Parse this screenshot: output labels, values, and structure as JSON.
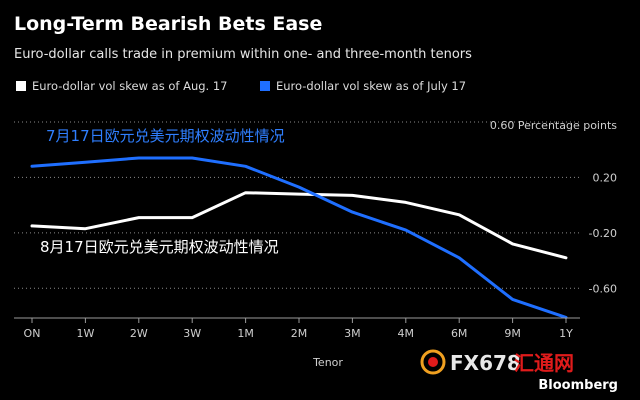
{
  "header": {
    "title": "Long-Term Bearish Bets Ease",
    "subtitle": "Euro-dollar calls trade in premium within one- and three-month tenors"
  },
  "annotations": {
    "july": "7月17日欧元兑美元期权波动性情况",
    "aug": "8月17日欧元兑美元期权波动性情况"
  },
  "watermark": {
    "part1": "FX678",
    "part2": "汇通网"
  },
  "source": "Bloomberg",
  "colors": {
    "background": "#000000",
    "aug": "#ffffff",
    "july": "#1f6fff"
  },
  "chart_data": {
    "type": "line",
    "title": "Long-Term Bearish Bets Ease",
    "subtitle": "Euro-dollar calls trade in premium within one- and three-month tenors",
    "xlabel": "Tenor",
    "ylabel": "Percentage points",
    "y_unit_label": "0.60 Percentage points",
    "ylim": [
      -0.8,
      0.6
    ],
    "grid": true,
    "legend_position": "top-left",
    "categories": [
      "ON",
      "1W",
      "2W",
      "3W",
      "1M",
      "2M",
      "3M",
      "4M",
      "6M",
      "9M",
      "1Y"
    ],
    "yticks": [
      {
        "value": 0.6,
        "label": "0.60"
      },
      {
        "value": 0.2,
        "label": "0.20"
      },
      {
        "value": -0.2,
        "label": "-0.20"
      },
      {
        "value": -0.6,
        "label": "-0.60"
      }
    ],
    "series": [
      {
        "name": "Euro-dollar vol skew as of Aug. 17",
        "color": "#ffffff",
        "values": [
          -0.15,
          -0.17,
          -0.09,
          -0.09,
          0.09,
          0.08,
          0.07,
          0.02,
          -0.07,
          -0.28,
          -0.38
        ]
      },
      {
        "name": "Euro-dollar vol skew as of July 17",
        "color": "#1f6fff",
        "values": [
          0.28,
          0.31,
          0.34,
          0.34,
          0.28,
          0.13,
          -0.05,
          -0.18,
          -0.38,
          -0.68,
          -0.81
        ]
      }
    ]
  }
}
